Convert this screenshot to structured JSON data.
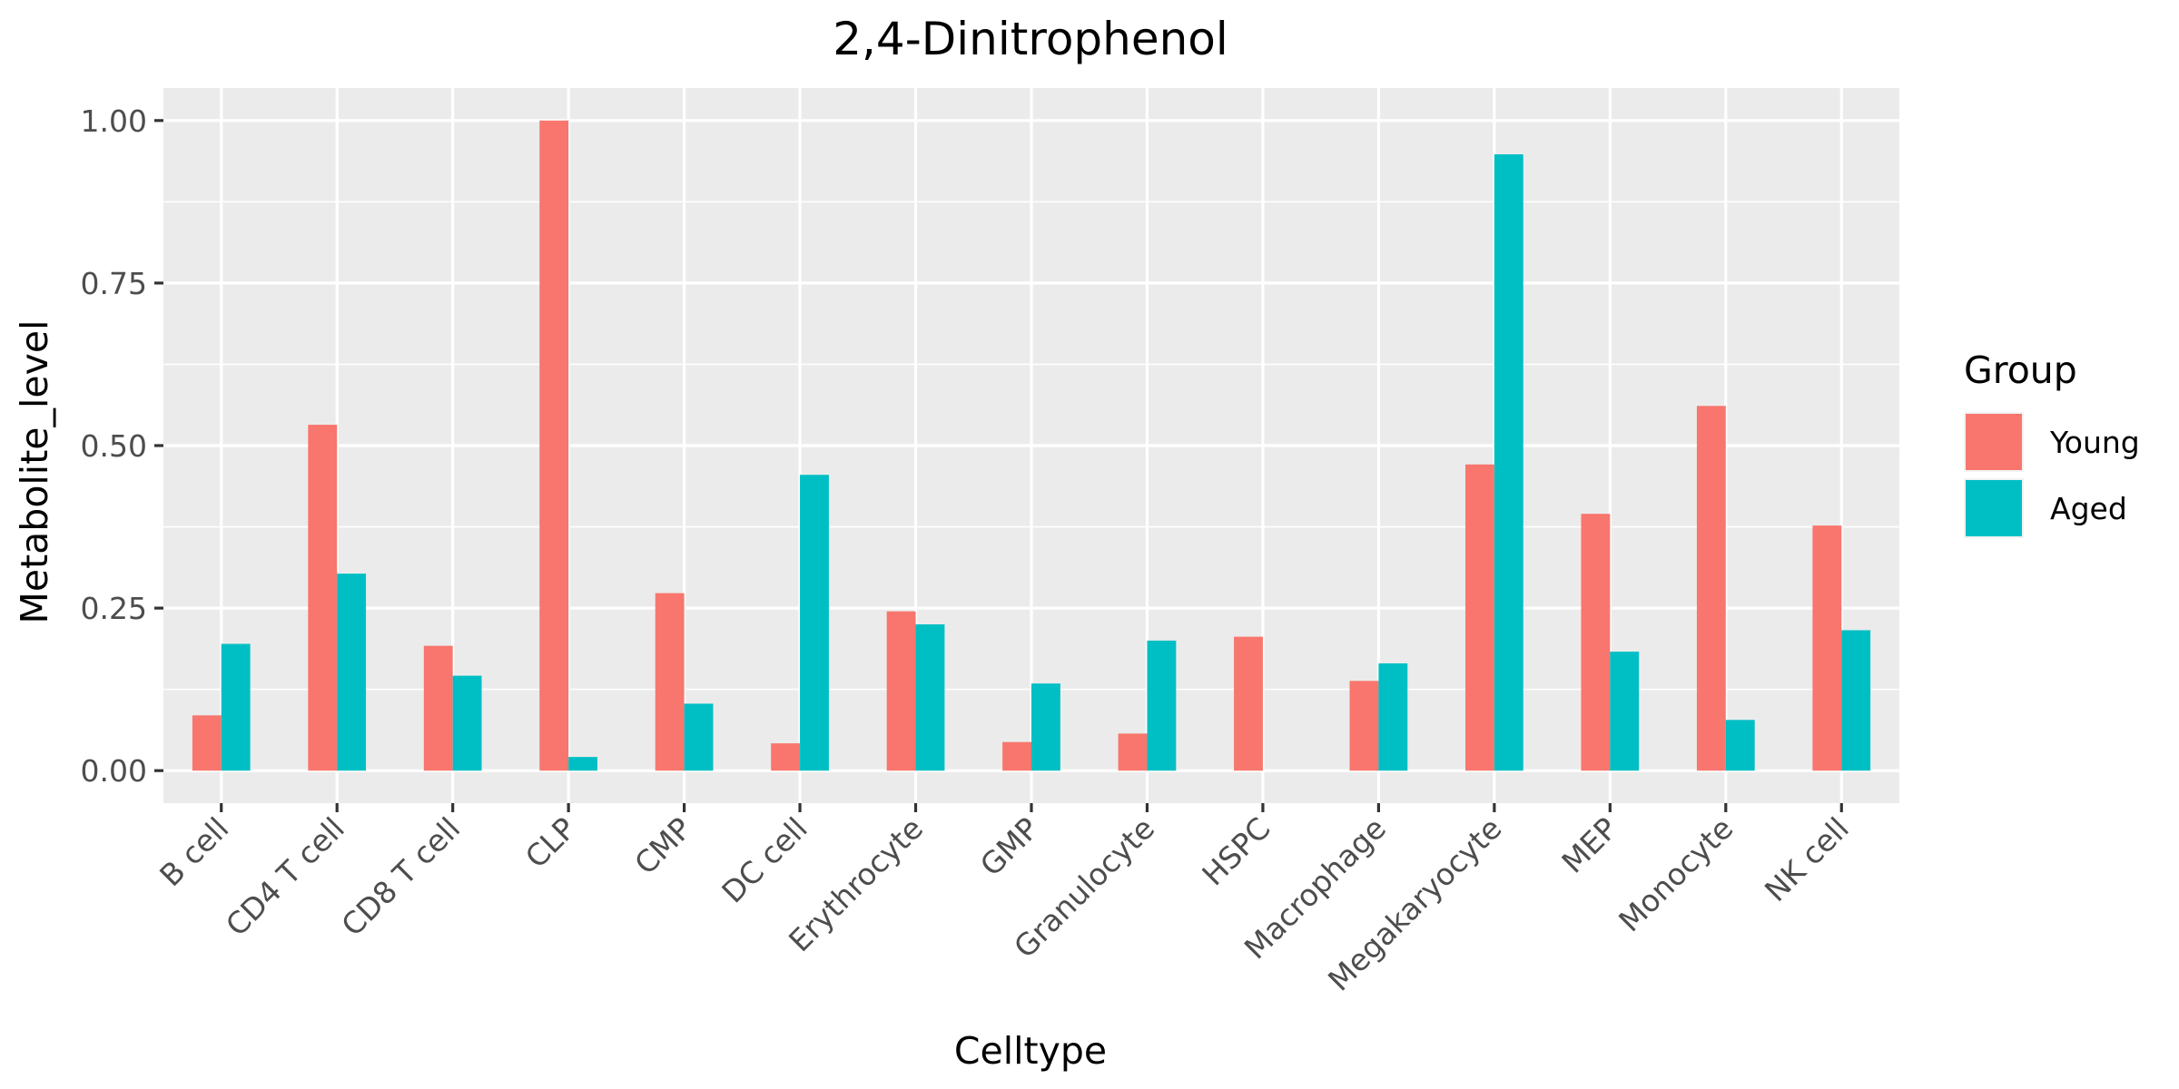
{
  "chart_data": {
    "type": "bar",
    "title": "2,4-Dinitrophenol",
    "xlabel": "Celltype",
    "ylabel": "Metabolite_level",
    "ylim": [
      -0.05,
      1.05
    ],
    "yticks": [
      "0.00",
      "0.25",
      "0.50",
      "0.75",
      "1.00"
    ],
    "ytick_values": [
      0,
      0.25,
      0.5,
      0.75,
      1.0
    ],
    "grid": true,
    "legend_position": "right",
    "legend_title": "Group",
    "categories": [
      "B cell",
      "CD4 T cell",
      "CD8 T cell",
      "CLP",
      "CMP",
      "DC cell",
      "Erythrocyte",
      "GMP",
      "Granulocyte",
      "HSPC",
      "Macrophage",
      "Megakaryocyte",
      "MEP",
      "Monocyte",
      "NK cell"
    ],
    "series": [
      {
        "name": "Young",
        "color": "#F8766D",
        "values": [
          0.085,
          0.532,
          0.192,
          1.0,
          0.273,
          0.042,
          0.245,
          0.044,
          0.057,
          0.206,
          0.138,
          0.471,
          0.395,
          0.561,
          0.377
        ]
      },
      {
        "name": "Aged",
        "color": "#00BFC4",
        "values": [
          0.195,
          0.303,
          0.146,
          0.021,
          0.103,
          0.455,
          0.225,
          0.134,
          0.2,
          0.0,
          0.165,
          0.948,
          0.183,
          0.078,
          0.216
        ]
      }
    ]
  }
}
